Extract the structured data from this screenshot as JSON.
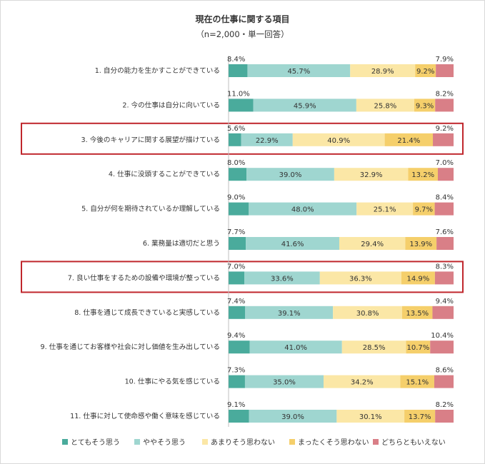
{
  "chart_data": {
    "type": "bar",
    "orientation": "horizontal-stacked-100",
    "title": "現在の仕事に関する項目",
    "subtitle": "（n=2,000・単一回答）",
    "categories": [
      "1. 自分の能力を生かすことができている",
      "2. 今の仕事は自分に向いている",
      "3. 今後のキャリアに関する展望が描けている",
      "4. 仕事に没頭することができている",
      "5. 自分が何を期待されているか理解している",
      "6. 業務量は適切だと思う",
      "7. 良い仕事をするための設備や環境が整っている",
      "8. 仕事を通じて成長できていると実感している",
      "9. 仕事を通じてお客様や社会に対し価値を生み出している",
      "10. 仕事にやる気を感じている",
      "11. 仕事に対して使命感や働く意味を感じている"
    ],
    "highlighted": [
      2,
      6
    ],
    "series": [
      {
        "name": "とてもそう思う",
        "color": "#4aab9c",
        "values": [
          8.4,
          11.0,
          5.6,
          8.0,
          9.0,
          7.7,
          7.0,
          7.4,
          9.4,
          7.3,
          9.1
        ]
      },
      {
        "name": "ややそう思う",
        "color": "#9fd6d0",
        "values": [
          45.7,
          45.9,
          22.9,
          39.0,
          48.0,
          41.6,
          33.6,
          39.1,
          41.0,
          35.0,
          39.0
        ]
      },
      {
        "name": "あまりそう思わない",
        "color": "#fbe7a6",
        "values": [
          28.9,
          25.8,
          40.9,
          32.9,
          25.1,
          29.4,
          36.3,
          30.8,
          28.5,
          34.2,
          30.1
        ]
      },
      {
        "name": "まったくそう思わない",
        "color": "#f5cf6b",
        "values": [
          9.2,
          9.3,
          21.4,
          13.2,
          9.7,
          13.9,
          14.9,
          13.5,
          10.7,
          15.1,
          13.7
        ]
      },
      {
        "name": "どちらともいえない",
        "color": "#d97f87",
        "values": [
          7.9,
          8.2,
          9.2,
          7.0,
          8.4,
          7.6,
          8.3,
          9.4,
          10.4,
          8.6,
          8.2
        ]
      }
    ],
    "legend_position": "bottom",
    "highlight_color": "#c0272d"
  }
}
